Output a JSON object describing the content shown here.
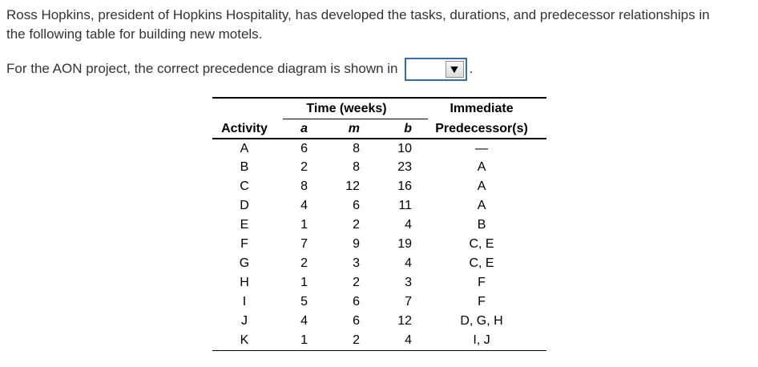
{
  "intro": {
    "line1": "Ross Hopkins, president of Hopkins Hospitality, has developed the tasks, durations, and predecessor relationships in",
    "line2": "the following table for building new motels."
  },
  "question": {
    "prefix": "For the AON project, the correct precedence diagram is shown in",
    "suffix": ".",
    "dropdown": {
      "value": "",
      "icon": "caret-down",
      "caret_glyph": "▼",
      "border_color": "#2e6fb7"
    }
  },
  "table": {
    "header": {
      "activity": "Activity",
      "time_group": "Time (weeks)",
      "a": "a",
      "m": "m",
      "b": "b",
      "predecessor_line1": "Immediate",
      "predecessor_line2": "Predecessor(s)"
    },
    "rows": [
      {
        "activity": "A",
        "a": "6",
        "m": "8",
        "b": "10",
        "pred": "—"
      },
      {
        "activity": "B",
        "a": "2",
        "m": "8",
        "b": "23",
        "pred": "A"
      },
      {
        "activity": "C",
        "a": "8",
        "m": "12",
        "b": "16",
        "pred": "A"
      },
      {
        "activity": "D",
        "a": "4",
        "m": "6",
        "b": "11",
        "pred": "A"
      },
      {
        "activity": "E",
        "a": "1",
        "m": "2",
        "b": "4",
        "pred": "B"
      },
      {
        "activity": "F",
        "a": "7",
        "m": "9",
        "b": "19",
        "pred": "C, E"
      },
      {
        "activity": "G",
        "a": "2",
        "m": "3",
        "b": "4",
        "pred": "C, E"
      },
      {
        "activity": "H",
        "a": "1",
        "m": "2",
        "b": "3",
        "pred": "F"
      },
      {
        "activity": "I",
        "a": "5",
        "m": "6",
        "b": "7",
        "pred": "F"
      },
      {
        "activity": "J",
        "a": "4",
        "m": "6",
        "b": "12",
        "pred": "D, G, H"
      },
      {
        "activity": "K",
        "a": "1",
        "m": "2",
        "b": "4",
        "pred": "I, J"
      }
    ]
  },
  "colors": {
    "text": "#333333",
    "table_text": "#000000",
    "dropdown_border": "#2e6fb7",
    "background": "#ffffff"
  }
}
